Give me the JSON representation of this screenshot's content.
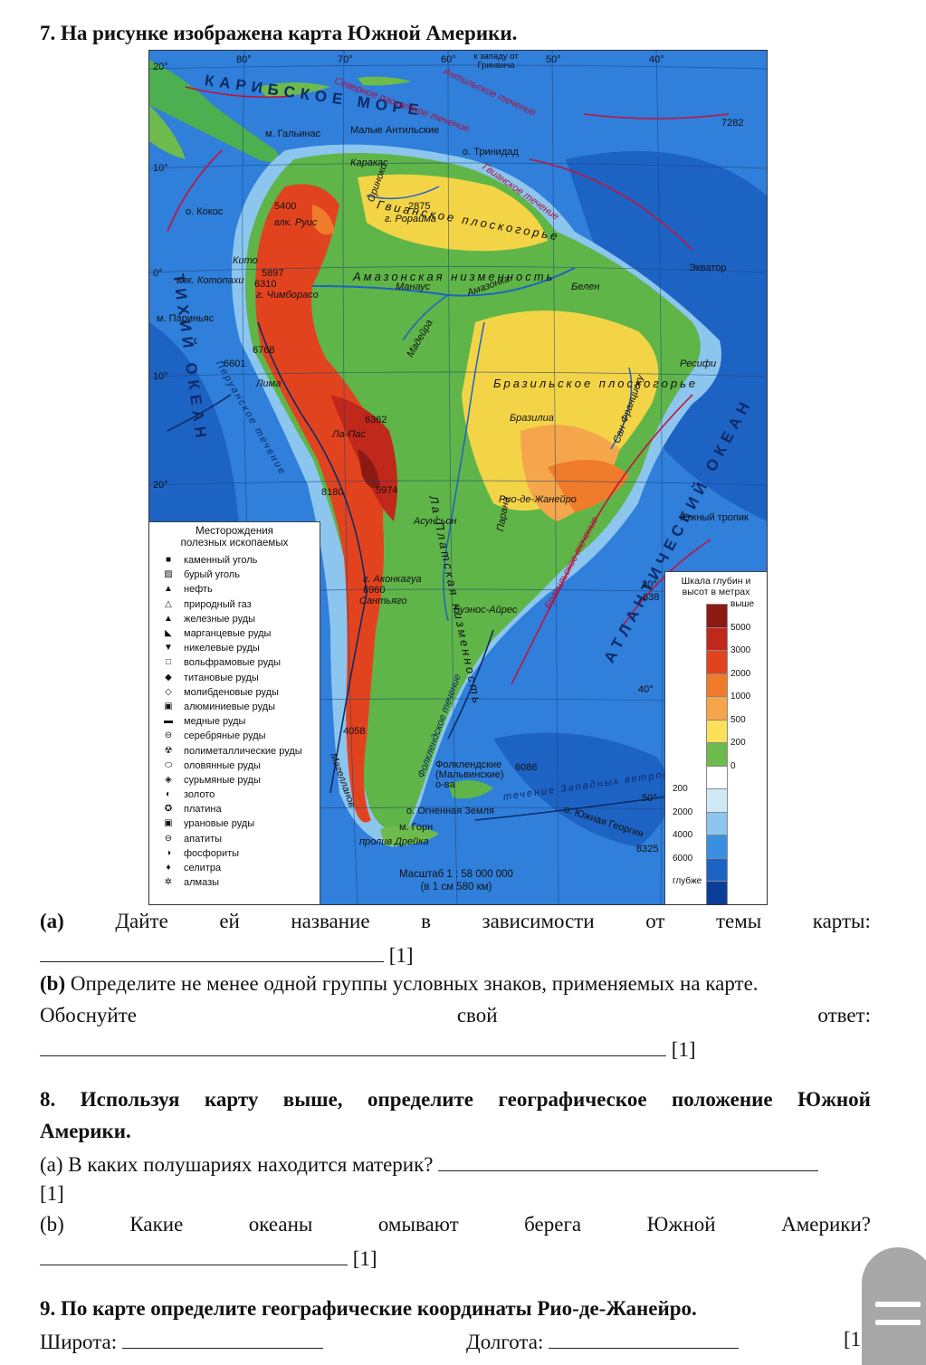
{
  "q7": {
    "title": "7. На рисунке изображена карта Южной Америки.",
    "a_label": "(a)",
    "a_words": [
      "Дайте",
      "ей",
      "название",
      "в",
      "зависимости",
      "от",
      "темы",
      "карты:"
    ],
    "a_mark": "[1]",
    "b_line1": "(b) Определите не менее одной группы условных знаков, применяемых на карте.",
    "b_words": [
      "Обоснуйте",
      "свой",
      "ответ:"
    ],
    "b_mark": "[1]"
  },
  "q8": {
    "title_line1": "8. Используя карту выше, определите географическое положение Южной",
    "title_line2": "Америки.",
    "a_text": "(a) В каких полушариях находится материк?",
    "a_mark": "[1]",
    "b_words": [
      "(b)",
      "Какие",
      "океаны",
      "омывают",
      "берега",
      "Южной",
      "Америки?"
    ],
    "b_mark": "[1]"
  },
  "q9": {
    "title": "9. По карте определите географические координаты Рио-де-Жанейро.",
    "lat_label": "Широта:",
    "lon_label": "Долгота:",
    "mark": "[1]"
  },
  "map": {
    "legend_title": "Месторождения\nполезных ископаемых",
    "legend_items": [
      {
        "icon": "square-filled-icon",
        "glyph": "■",
        "label": "каменный уголь"
      },
      {
        "icon": "square-hatched-icon",
        "glyph": "▨",
        "label": "бурый уголь"
      },
      {
        "icon": "triangle-filled-icon",
        "glyph": "▲",
        "label": "нефть"
      },
      {
        "icon": "triangle-outline-icon",
        "glyph": "△",
        "label": "природный газ"
      },
      {
        "icon": "triangle-filled-icon",
        "glyph": "▲",
        "label": "железные руды"
      },
      {
        "icon": "manganese-icon",
        "glyph": "◣",
        "label": "марганцевые руды"
      },
      {
        "icon": "triangle-down-icon",
        "glyph": "▼",
        "label": "никелевые руды"
      },
      {
        "icon": "square-outline-icon",
        "glyph": "□",
        "label": "вольфрамовые руды"
      },
      {
        "icon": "diamond-half-icon",
        "glyph": "◆",
        "label": "титановые руды"
      },
      {
        "icon": "diamond-outline-icon",
        "glyph": "◇",
        "label": "молибденовые руды"
      },
      {
        "icon": "square-dot-icon",
        "glyph": "▣",
        "label": "алюминиевые руды"
      },
      {
        "icon": "bar-icon",
        "glyph": "▬",
        "label": "медные руды"
      },
      {
        "icon": "circle-cross-icon",
        "glyph": "⊖",
        "label": "серебряные руды"
      },
      {
        "icon": "radiation-icon",
        "glyph": "☢",
        "label": "полиметаллические руды"
      },
      {
        "icon": "oval-outline-icon",
        "glyph": "⬭",
        "label": "оловянные руды"
      },
      {
        "icon": "diamond-split-icon",
        "glyph": "◈",
        "label": "сурьмяные руды"
      },
      {
        "icon": "circle-half-icon",
        "glyph": "◐",
        "label": "золото"
      },
      {
        "icon": "circle-star-icon",
        "glyph": "✪",
        "label": "платина"
      },
      {
        "icon": "square-circle-icon",
        "glyph": "▣",
        "label": "урановые руды"
      },
      {
        "icon": "circle-minus-icon",
        "glyph": "⊖",
        "label": "апатиты"
      },
      {
        "icon": "circle-bar-icon",
        "glyph": "◑",
        "label": "фосфориты"
      },
      {
        "icon": "drop-icon",
        "glyph": "♦",
        "label": "селитра"
      },
      {
        "icon": "gear-icon",
        "glyph": "✲",
        "label": "алмазы"
      }
    ],
    "scale_title": "Шкала глубин и\nвысот в метрах",
    "scale_labels": [
      "выше",
      "5000",
      "3000",
      "2000",
      "1000",
      "500",
      "200",
      "0",
      "200",
      "2000",
      "4000",
      "6000",
      "глубже"
    ],
    "scale_colors": [
      "#8c1a12",
      "#c0281b",
      "#e2431f",
      "#f07b2a",
      "#f6a64a",
      "#fde05a",
      "#6dbb4c",
      "#ffffff",
      "#cfe9f7",
      "#8cc5ee",
      "#3a8fe0",
      "#1d63c4",
      "#0b3e98"
    ],
    "masshtab": "Масштаб 1 : 58 000 000\n(в 1 см 580 км)",
    "labels": {
      "karib": "КАРИБСКОЕ МОРЕ",
      "tikhiy": "ТИХИЙ ОКЕАН",
      "atlant": "АТЛАНТИЧЕСКИЙ ОКЕАН",
      "amazon_low": "Амазонская низменность",
      "braz_plat": "Бразильское плоскогорье",
      "gvian_plat": "Гвианское плоскогорье",
      "la_plata": "Ла-Платская низменность",
      "kito": "Кито",
      "lima": "Лима",
      "la_paz": "Ла-Пас",
      "santyago": "Сантьяго",
      "buenos": "Буэнос-Айрес",
      "rio": "Рио-де-Жанейро",
      "brazilia": "Бразилиа",
      "karakas": "Каракас",
      "manaus": "Манаус",
      "belen": "Белен",
      "resifi": "Ресифи",
      "asuncion": "Асунсьон",
      "akonkagua": "г. Аконкагуа",
      "akonkagua_h": "6960",
      "trinidad": "о. Тринидад",
      "galinas": "м. Гальинас",
      "parinyas": "м. Париньяс",
      "kokos": "о. Кокос",
      "roraima": "г. Рорайма",
      "roraima_h": "2875",
      "kotopakhi": "влк. Котопахи",
      "kotopakhi_h": "5897",
      "chimborazo": "г. Чимборасо",
      "chimborazo_h": "6310",
      "ruis": "влк. Руис",
      "ruis_h": "5400",
      "h6768": "6768",
      "h6601": "6601",
      "h6362": "6362",
      "h5974": "5974",
      "h8180": "8180",
      "h4058": "4058",
      "h7282": "7282",
      "h6086": "6086",
      "h8325": "8325",
      "h638": "638",
      "falkland": "Фолклендские (Мальвинские) о-ва",
      "ognennaya": "о. Огненная Земля",
      "gorn": "м. Горн",
      "dreika": "пролив Дрейка",
      "yuzhgeorgia": "о. Южная Георгия",
      "ekvator": "Экватор",
      "tropik": "Южный тропик",
      "zapad": "к западу от Гринвича",
      "gvian_tech": "Гвианское течение",
      "braz_tech": "Бразильское течение",
      "falk_tech": "Фолклендское течение",
      "peru_tech": "Перуанское течение",
      "zap_vetrov": "течение Западных ветров",
      "sev_passat": "Северное пассатное течение",
      "antil_tech": "Антильское течение",
      "maly_antil": "Малые Антильские",
      "orinoko": "Ориноко",
      "amazonka": "Амазонка",
      "madeira": "Мадейра",
      "parana": "Парана",
      "san_fr": "Сан-Франциску",
      "magellan": "Магелланов",
      "lon80": "80°",
      "lon70": "70°",
      "lon60": "60°",
      "lon50": "50°",
      "lon40": "40°",
      "lat20n": "20°",
      "lat10n": "10°",
      "lat0": "0°",
      "lat10s": "10°",
      "lat20s": "20°",
      "lat30s": "30°",
      "lat40s": "40°",
      "lat50s": "50°"
    }
  }
}
